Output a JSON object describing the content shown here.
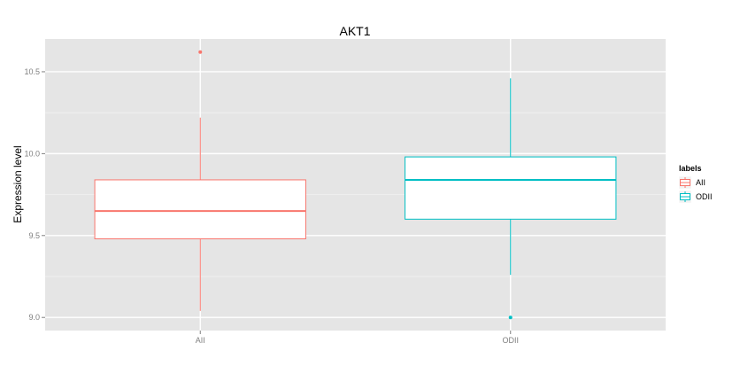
{
  "chart_data": {
    "type": "box",
    "title": "AKT1",
    "xlabel": "",
    "ylabel": "Expression level",
    "ylim": [
      8.92,
      10.7
    ],
    "yticks": [
      9.0,
      9.5,
      10.0,
      10.5
    ],
    "ytick_labels": [
      "9.0",
      "9.5",
      "10.0",
      "10.5"
    ],
    "categories": [
      "AII",
      "ODII"
    ],
    "colors": [
      "#F8766D",
      "#00BFC4"
    ],
    "boxes": [
      {
        "category": "AII",
        "whisker_low": 9.04,
        "q1": 9.48,
        "median": 9.65,
        "q3": 9.84,
        "whisker_high": 10.22,
        "outliers": [
          10.62
        ]
      },
      {
        "category": "ODII",
        "whisker_low": 9.26,
        "q1": 9.6,
        "median": 9.84,
        "q3": 9.98,
        "whisker_high": 10.46,
        "outliers": [
          9.0
        ]
      }
    ],
    "grid": true,
    "legend": {
      "title": "labels",
      "position": "right",
      "entries": [
        "AII",
        "ODII"
      ]
    }
  }
}
